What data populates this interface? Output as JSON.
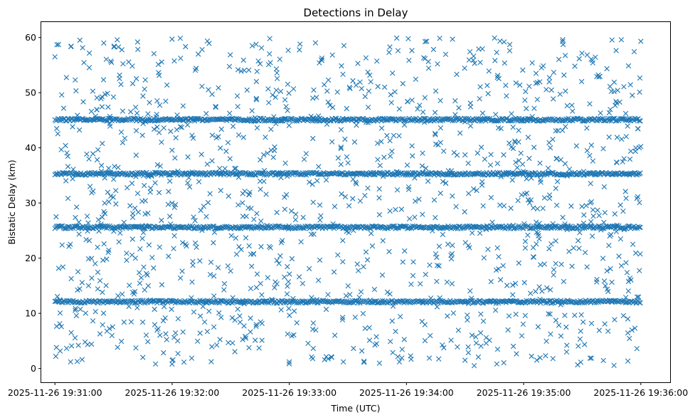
{
  "chart_data": {
    "type": "scatter",
    "title": "Detections in Delay",
    "xlabel": "Time (UTC)",
    "ylabel": "Bistatic Delay (km)",
    "x_ticks": [
      "2025-11-26 19:31:00",
      "2025-11-26 19:32:00",
      "2025-11-26 19:33:00",
      "2025-11-26 19:34:00",
      "2025-11-26 19:35:00",
      "2025-11-26 19:36:00"
    ],
    "y_ticks": [
      0,
      10,
      20,
      30,
      40,
      50,
      60
    ],
    "xlim": [
      "2025-11-26 19:30:53",
      "2025-11-26 19:36:15"
    ],
    "ylim": [
      -2.5,
      62.8
    ],
    "marker": "x",
    "color": "#1f77b4",
    "grid": false,
    "bands": [
      {
        "delay_km": 12.1,
        "from": "2025-11-26 19:31:00",
        "to": "2025-11-26 19:36:00"
      },
      {
        "delay_km": 25.6,
        "from": "2025-11-26 19:31:00",
        "to": "2025-11-26 19:36:00"
      },
      {
        "delay_km": 35.3,
        "from": "2025-11-26 19:31:00",
        "to": "2025-11-26 19:36:00"
      },
      {
        "delay_km": 45.1,
        "from": "2025-11-26 19:31:00",
        "to": "2025-11-26 19:36:00"
      }
    ],
    "sample_points": [
      {
        "time": "2025-11-26 19:31:00",
        "delay_km": 56.5
      },
      {
        "time": "2025-11-26 19:31:01",
        "delay_km": 58.7
      },
      {
        "time": "2025-11-26 19:31:08",
        "delay_km": 1.2
      },
      {
        "time": "2025-11-26 19:31:25",
        "delay_km": 59.0
      },
      {
        "time": "2025-11-26 19:31:45",
        "delay_km": 2.0
      },
      {
        "time": "2025-11-26 19:32:00",
        "delay_km": 59.7
      },
      {
        "time": "2025-11-26 19:32:00",
        "delay_km": 0.8
      },
      {
        "time": "2025-11-26 19:32:50",
        "delay_km": 59.8
      },
      {
        "time": "2025-11-26 19:33:00",
        "delay_km": 1.2
      },
      {
        "time": "2025-11-26 19:33:20",
        "delay_km": 52.3
      },
      {
        "time": "2025-11-26 19:33:55",
        "delay_km": 59.9
      },
      {
        "time": "2025-11-26 19:34:30",
        "delay_km": 1.5
      },
      {
        "time": "2025-11-26 19:34:50",
        "delay_km": 59.2
      },
      {
        "time": "2025-11-26 19:35:15",
        "delay_km": 1.8
      },
      {
        "time": "2025-11-26 19:35:20",
        "delay_km": 59.6
      },
      {
        "time": "2025-11-26 19:35:50",
        "delay_km": 59.6
      },
      {
        "time": "2025-11-26 19:35:58",
        "delay_km": 3.6
      },
      {
        "time": "2025-11-26 19:36:00",
        "delay_km": 59.3
      }
    ],
    "random_point_count": 1300
  }
}
